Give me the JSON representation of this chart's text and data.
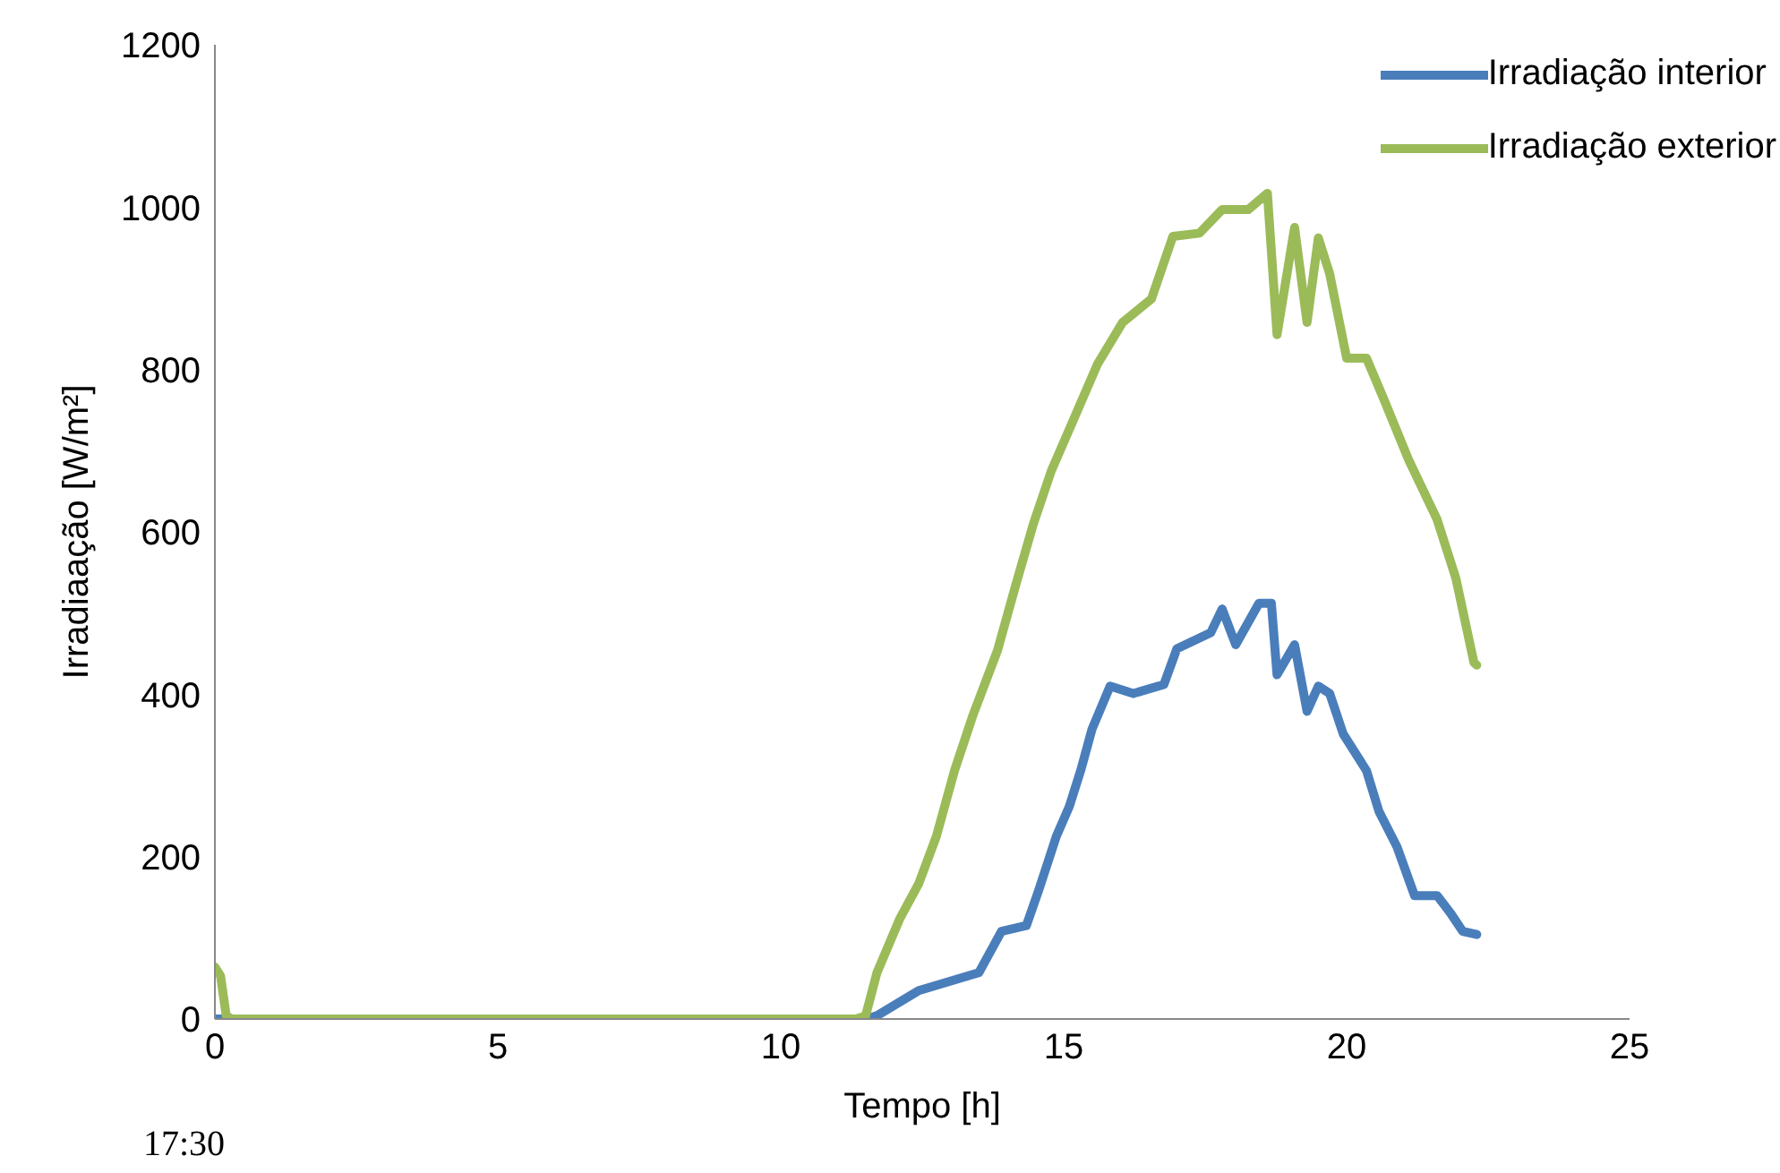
{
  "chart_data": {
    "type": "line",
    "xlabel": "Tempo [h]",
    "ylabel": "Irradiaação [W/m²]",
    "xlim": [
      0,
      25
    ],
    "xticks": [
      0,
      5,
      10,
      15,
      20,
      25
    ],
    "ylim": [
      0,
      1200
    ],
    "yticks": [
      0,
      200,
      400,
      600,
      800,
      1000,
      1200
    ],
    "grid": false,
    "legend": "top right",
    "marker": "none",
    "line_style": "solid",
    "annotations": [
      "17:30"
    ],
    "series": [
      {
        "name": "Irradiação interior",
        "color": "#4a7ebb",
        "x": [
          0,
          0.2,
          5,
          10,
          11.5,
          11.7,
          12.44,
          13.5,
          13.9,
          14.34,
          14.56,
          14.87,
          15.1,
          15.3,
          15.5,
          15.82,
          16.23,
          16.77,
          17.0,
          17.6,
          17.8,
          18.04,
          18.45,
          18.67,
          18.77,
          19.08,
          19.3,
          19.5,
          19.7,
          19.94,
          20.35,
          20.57,
          20.89,
          21.2,
          21.6,
          21.84,
          22.05,
          22.3
        ],
        "values": [
          0,
          0,
          0,
          0,
          0,
          4,
          35,
          57,
          108,
          115,
          159,
          225,
          262,
          306,
          357,
          410,
          401,
          412,
          456,
          476,
          505,
          461,
          512,
          512,
          424,
          461,
          379,
          410,
          401,
          351,
          306,
          256,
          212,
          152,
          152,
          130,
          108,
          104
        ]
      },
      {
        "name": "Irradiação exterior",
        "color": "#9bbb59",
        "x": [
          0,
          0.1,
          0.2,
          0.3,
          5,
          11.33,
          11.5,
          11.7,
          12.1,
          12.44,
          12.75,
          13.07,
          13.39,
          13.83,
          14.15,
          14.46,
          14.78,
          15.19,
          15.6,
          16.04,
          16.55,
          16.93,
          17.4,
          17.8,
          18.26,
          18.6,
          18.77,
          19.08,
          19.3,
          19.5,
          19.7,
          20.0,
          20.35,
          20.66,
          21.1,
          21.6,
          21.93,
          22.25,
          22.3
        ],
        "values": [
          64,
          53,
          4,
          0,
          0,
          0,
          4,
          57,
          123,
          167,
          225,
          306,
          373,
          454,
          534,
          609,
          675,
          741,
          807,
          858,
          887,
          964,
          968,
          997,
          997,
          1017,
          843,
          975,
          858,
          962,
          918,
          814,
          814,
          763,
          688,
          615,
          543,
          439,
          436
        ]
      }
    ]
  }
}
